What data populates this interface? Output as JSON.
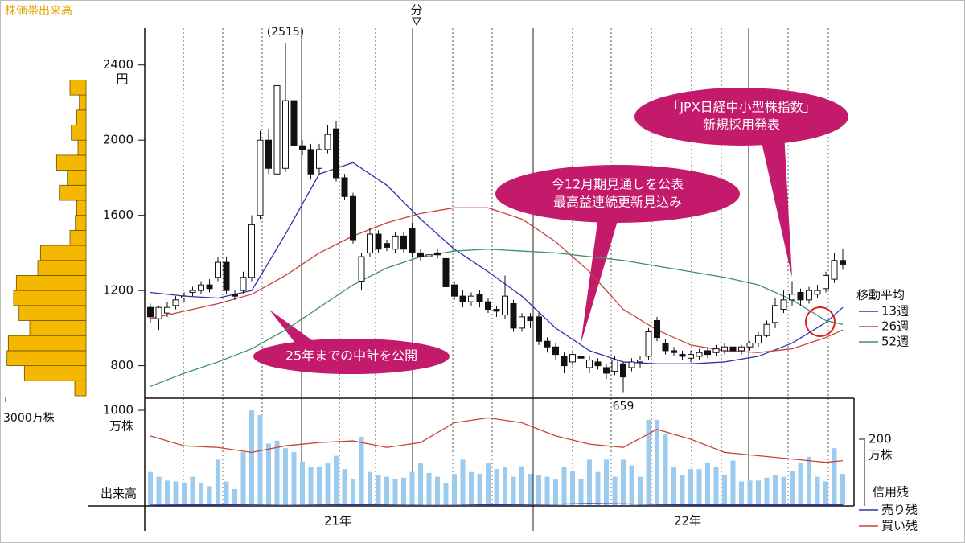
{
  "chart_data": [
    {
      "type": "candlestick",
      "open": [
        1110,
        1050,
        1080,
        1120,
        1160,
        1190,
        1200,
        1230,
        1270,
        1350,
        1180,
        1200,
        1270,
        1600,
        2000,
        1820,
        1850,
        2210,
        1970,
        1950,
        1850,
        1950,
        2060,
        1800,
        1700,
        1250,
        1400,
        1500,
        1450,
        1420,
        1490,
        1530,
        1400,
        1380,
        1400,
        1370,
        1230,
        1170,
        1140,
        1180,
        1140,
        1100,
        1070,
        1130,
        1000,
        1060,
        1060,
        930,
        900,
        850,
        820,
        850,
        790,
        820,
        790,
        770,
        810,
        790,
        820,
        850,
        1040,
        920,
        880,
        860,
        840,
        850,
        880,
        870,
        880,
        900,
        880,
        900,
        920,
        960,
        1030,
        1100,
        1150,
        1190,
        1150,
        1180,
        1210,
        1260,
        1360
      ],
      "high": [
        1130,
        1120,
        1140,
        1170,
        1190,
        1220,
        1250,
        1260,
        1380,
        1380,
        1200,
        1300,
        1600,
        2050,
        2060,
        2310,
        2515,
        2280,
        2000,
        1980,
        1980,
        2080,
        2100,
        1820,
        1720,
        1400,
        1530,
        1520,
        1470,
        1510,
        1510,
        1560,
        1420,
        1410,
        1420,
        1400,
        1250,
        1200,
        1190,
        1200,
        1160,
        1120,
        1280,
        1150,
        1080,
        1080,
        1080,
        950,
        920,
        870,
        880,
        880,
        850,
        840,
        810,
        850,
        820,
        840,
        850,
        1000,
        1060,
        940,
        900,
        880,
        880,
        890,
        900,
        910,
        920,
        920,
        910,
        930,
        980,
        1040,
        1160,
        1200,
        1250,
        1210,
        1220,
        1230,
        1300,
        1400,
        1420
      ],
      "low": [
        1030,
        990,
        1060,
        1100,
        1140,
        1170,
        1180,
        1190,
        1250,
        1180,
        1150,
        1180,
        1250,
        1580,
        1820,
        1800,
        1830,
        1950,
        1920,
        1790,
        1820,
        1930,
        1780,
        1680,
        1450,
        1200,
        1380,
        1400,
        1410,
        1400,
        1400,
        1380,
        1360,
        1360,
        1370,
        1200,
        1150,
        1110,
        1120,
        1110,
        1080,
        1060,
        1050,
        980,
        980,
        1000,
        910,
        870,
        830,
        760,
        800,
        810,
        760,
        780,
        730,
        750,
        659,
        770,
        790,
        830,
        930,
        860,
        850,
        830,
        820,
        830,
        840,
        850,
        860,
        860,
        860,
        880,
        900,
        950,
        1000,
        1080,
        1120,
        1120,
        1130,
        1160,
        1190,
        1240,
        1310
      ],
      "close": [
        1060,
        1110,
        1110,
        1150,
        1170,
        1200,
        1230,
        1210,
        1350,
        1200,
        1170,
        1270,
        1550,
        2000,
        1850,
        2290,
        2210,
        1970,
        1950,
        1820,
        1950,
        2030,
        1800,
        1700,
        1470,
        1380,
        1500,
        1420,
        1430,
        1490,
        1420,
        1400,
        1380,
        1390,
        1390,
        1220,
        1170,
        1140,
        1170,
        1140,
        1100,
        1090,
        1170,
        1000,
        1060,
        1040,
        930,
        900,
        860,
        800,
        860,
        840,
        830,
        800,
        760,
        830,
        740,
        820,
        830,
        980,
        950,
        880,
        870,
        850,
        860,
        870,
        860,
        890,
        900,
        880,
        900,
        920,
        960,
        1020,
        1120,
        1150,
        1180,
        1150,
        1200,
        1200,
        1280,
        1360,
        1340
      ],
      "ylim": [
        640,
        2600
      ],
      "yticks": [
        800,
        1200,
        1600,
        2000,
        2400
      ],
      "y_unit": "円",
      "x_labels": [
        "21年",
        "22年"
      ],
      "peak_label": "(2515)",
      "split_label": "分",
      "legend_title": "移動平均",
      "series": [
        {
          "name": "13週",
          "color": "#2b33b0",
          "x": [
            0,
            4,
            8,
            12,
            16,
            20,
            24,
            28,
            32,
            36,
            40,
            44,
            48,
            52,
            56,
            60,
            64,
            68,
            72,
            76,
            80,
            82
          ],
          "values": [
            1190,
            1170,
            1160,
            1200,
            1500,
            1820,
            1880,
            1760,
            1580,
            1420,
            1300,
            1170,
            1000,
            880,
            820,
            810,
            810,
            820,
            850,
            920,
            1030,
            1110
          ]
        },
        {
          "name": "26週",
          "color": "#c8423a",
          "x": [
            0,
            4,
            8,
            12,
            16,
            20,
            24,
            28,
            32,
            36,
            40,
            44,
            48,
            52,
            56,
            60,
            64,
            68,
            72,
            76,
            80,
            82
          ],
          "values": [
            1050,
            1090,
            1130,
            1180,
            1280,
            1400,
            1490,
            1560,
            1610,
            1640,
            1640,
            1580,
            1460,
            1300,
            1100,
            990,
            910,
            880,
            870,
            890,
            950,
            990
          ]
        },
        {
          "name": "52週",
          "color": "#3f8f6f",
          "x": [
            0,
            4,
            8,
            12,
            16,
            20,
            24,
            28,
            32,
            36,
            40,
            44,
            48,
            52,
            56,
            60,
            64,
            68,
            72,
            76,
            80,
            82
          ],
          "values": [
            690,
            760,
            820,
            890,
            990,
            1110,
            1230,
            1320,
            1380,
            1410,
            1420,
            1410,
            1400,
            1380,
            1360,
            1330,
            1300,
            1270,
            1230,
            1150,
            1040,
            1020
          ]
        }
      ],
      "callouts": [
        [
          "25年までの中計を公開"
        ],
        [
          "今12月期見通しを公表",
          "最高益連続更新見込み"
        ],
        [
          "「JPX日経中小型株指数」",
          "新規採用発表"
        ]
      ]
    },
    {
      "type": "bar",
      "title": "出来高",
      "color": "#9ccbf0",
      "values": [
        350,
        300,
        260,
        250,
        240,
        300,
        230,
        200,
        480,
        250,
        170,
        560,
        1000,
        950,
        650,
        680,
        600,
        560,
        460,
        400,
        400,
        440,
        520,
        380,
        280,
        720,
        350,
        320,
        300,
        280,
        290,
        350,
        440,
        340,
        300,
        230,
        330,
        480,
        350,
        330,
        440,
        380,
        400,
        300,
        410,
        330,
        320,
        300,
        270,
        400,
        360,
        280,
        480,
        350,
        480,
        300,
        480,
        420,
        300,
        900,
        900,
        750,
        400,
        320,
        380,
        380,
        450,
        400,
        320,
        470,
        250,
        260,
        260,
        290,
        320,
        300,
        360,
        450,
        510,
        300,
        250,
        600,
        330
      ],
      "ylim": [
        0,
        1000
      ],
      "yticks": [
        1000
      ],
      "y_unit": "万株",
      "y2lim": [
        0,
        300
      ],
      "y2ticks": [
        200
      ],
      "y2_unit": "万株",
      "legend_title": "信用残",
      "series": [
        {
          "name": "売り残",
          "color": "#2b33b0",
          "axis": "y2",
          "x": [
            0,
            4,
            8,
            12,
            16,
            20,
            24,
            28,
            32,
            36,
            40,
            44,
            48,
            52,
            56,
            60,
            64,
            68,
            72,
            76,
            80,
            82
          ],
          "values": [
            0,
            1,
            1,
            2,
            3,
            2,
            1,
            2,
            3,
            3,
            1,
            2,
            3,
            5,
            4,
            2,
            1,
            1,
            1,
            1,
            1,
            1
          ]
        },
        {
          "name": "買い残",
          "color": "#c8423a",
          "axis": "y2",
          "x": [
            0,
            4,
            8,
            12,
            16,
            20,
            24,
            28,
            32,
            36,
            40,
            44,
            48,
            52,
            56,
            60,
            64,
            68,
            72,
            76,
            80,
            82
          ],
          "values": [
            210,
            180,
            175,
            160,
            180,
            190,
            195,
            175,
            190,
            250,
            265,
            250,
            210,
            185,
            175,
            230,
            200,
            160,
            150,
            140,
            130,
            135
          ]
        }
      ]
    },
    {
      "type": "histogram",
      "title": "株価帯出来高",
      "orientation": "horizontal",
      "color": "#f5b800",
      "bins": [
        640,
        720,
        800,
        880,
        960,
        1040,
        1120,
        1200,
        1280,
        1360,
        1440,
        1520,
        1600,
        1680,
        1760,
        1840,
        1920,
        2000,
        2080,
        2160,
        2240,
        2320
      ],
      "values": [
        420,
        2300,
        2950,
        2900,
        2100,
        2500,
        2700,
        2600,
        1800,
        1700,
        600,
        400,
        350,
        1000,
        700,
        1100,
        300,
        550,
        350,
        250,
        600
      ],
      "xlim": [
        0,
        3000
      ],
      "xticks": [
        {
          "value": 3000,
          "label": "3000万株"
        }
      ]
    }
  ]
}
